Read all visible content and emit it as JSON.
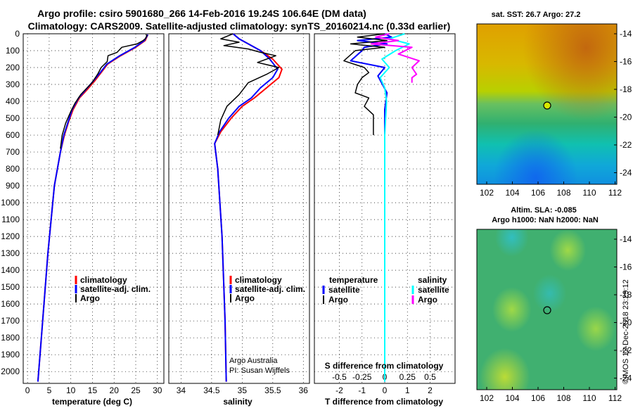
{
  "title": {
    "line1": "Argo profile: csiro 5901680_266 14-Feb-2016 19.24S 106.64E (DM data)",
    "line2": "Climatology: CARS2009. Satellite-adjusted climatology: synTS_20160214.nc (0.33d earlier)"
  },
  "colors": {
    "climatology": "#ff0000",
    "satellite": "#0000ff",
    "argo": "#000000",
    "sat_salinity": "#00ffff",
    "argo_salinity": "#ff00ff"
  },
  "panel_temp": {
    "xlabel": "temperature (deg C)",
    "legend": [
      "climatology",
      "satellite-adj. clim.",
      "Argo"
    ]
  },
  "panel_sal": {
    "xlabel": "salinity",
    "legend": [
      "climatology",
      "satellite-adj. clim.",
      "Argo"
    ],
    "credit1": "Argo Australia",
    "credit2": "PI: Susan Wijffels"
  },
  "panel_diff": {
    "xlabel": "T difference from climatology",
    "top_xlabel": "S difference from climatology",
    "legend_t_title": "temperature",
    "legend_s_title": "salinity",
    "legend_t": [
      "satellite",
      "Argo"
    ],
    "legend_s": [
      "satellite",
      "Argo"
    ]
  },
  "map_sst": {
    "title": "sat. SST: 26.7 Argo: 27.2",
    "lon_ticks": [
      "102",
      "104",
      "106",
      "108",
      "110",
      "112"
    ],
    "lat_ticks": [
      "-14",
      "-16",
      "-18",
      "-20",
      "-22",
      "-24"
    ]
  },
  "map_sla": {
    "title1": "Altim. SLA: -0.085",
    "title2": "Argo h1000: NaN h2000: NaN",
    "lon_ticks": [
      "102",
      "104",
      "106",
      "108",
      "110",
      "112"
    ],
    "lat_ticks": [
      "-14",
      "-16",
      "-18",
      "-20",
      "-22",
      "-24"
    ]
  },
  "footer_vertical": "©IMOS 12-Dec-2018 23:29:12",
  "chart_data": [
    {
      "type": "line",
      "name": "temperature profile",
      "xlabel": "temperature (deg C)",
      "ylabel": "",
      "xlim": [
        -1,
        31.5
      ],
      "ylim": [
        0,
        2070
      ],
      "y_inverted": true,
      "xticks": [
        0,
        5,
        10,
        15,
        20,
        25,
        30
      ],
      "yticks": [
        0,
        100,
        200,
        300,
        400,
        500,
        600,
        700,
        800,
        900,
        1000,
        1100,
        1200,
        1300,
        1400,
        1500,
        1600,
        1700,
        1800,
        1900,
        2000
      ],
      "ytick_labels": [
        "0",
        "100",
        "200",
        "300",
        "400",
        "500",
        "600",
        "700",
        "800",
        "900",
        "1000",
        "1100",
        "1200",
        "1300",
        "1400",
        "1500",
        "1600",
        "1700",
        "1800",
        "1900",
        "2000"
      ],
      "grid": true,
      "legend_position": "bottom-center",
      "series": [
        {
          "name": "climatology",
          "x": [
            27.8,
            27.2,
            25,
            21.5,
            18.5,
            17,
            15.5,
            13.8,
            12,
            10.5,
            9.5,
            8.5,
            7.6,
            6.2,
            4.7,
            3.2,
            2.4
          ],
          "y": [
            5,
            40,
            80,
            130,
            180,
            230,
            280,
            330,
            380,
            450,
            520,
            600,
            700,
            900,
            1300,
            1800,
            2060
          ]
        },
        {
          "name": "satellite-adj. clim.",
          "x": [
            27.8,
            27,
            24.8,
            21.3,
            18.3,
            16.8,
            15.2,
            13.5,
            11.8,
            10.3,
            9.4,
            8.4,
            7.6,
            6.2,
            4.7,
            3.2,
            2.4
          ],
          "y": [
            5,
            40,
            80,
            130,
            180,
            230,
            280,
            330,
            380,
            450,
            520,
            600,
            700,
            900,
            1300,
            1800,
            2060
          ]
        },
        {
          "name": "Argo",
          "x": [
            27.3,
            27.6,
            27.2,
            26.7,
            25.3,
            21.8,
            20.7,
            18.6,
            18.4,
            17,
            16.2,
            14.9,
            12.3,
            11,
            10,
            8.8,
            8,
            7.6
          ],
          "y": [
            5,
            10,
            30,
            40,
            60,
            80,
            110,
            130,
            165,
            200,
            240,
            290,
            360,
            410,
            460,
            530,
            600,
            680
          ]
        }
      ]
    },
    {
      "type": "line",
      "name": "salinity profile",
      "xlabel": "salinity",
      "xlim": [
        33.8,
        36.1
      ],
      "ylim": [
        0,
        2070
      ],
      "y_inverted": true,
      "xticks": [
        34,
        34.5,
        35,
        35.5,
        36
      ],
      "xtick_labels": [
        "34",
        "34.5",
        "35",
        "35.5",
        "36"
      ],
      "grid": true,
      "legend_position": "bottom-right",
      "series": [
        {
          "name": "climatology",
          "x": [
            34.85,
            34.95,
            35.1,
            35.3,
            35.5,
            35.65,
            35.6,
            35.4,
            35.2,
            35.0,
            34.82,
            34.65,
            34.55,
            34.6,
            34.67,
            34.72,
            34.74
          ],
          "y": [
            0,
            30,
            60,
            100,
            150,
            210,
            260,
            320,
            380,
            430,
            500,
            580,
            650,
            800,
            1200,
            1700,
            2060
          ]
        },
        {
          "name": "satellite-adj. clim.",
          "x": [
            34.85,
            34.95,
            35.1,
            35.3,
            35.45,
            35.58,
            35.5,
            35.3,
            35.15,
            34.95,
            34.78,
            34.63,
            34.55,
            34.6,
            34.67,
            34.72,
            34.74
          ],
          "y": [
            0,
            30,
            60,
            100,
            150,
            210,
            260,
            320,
            380,
            430,
            500,
            580,
            650,
            800,
            1200,
            1700,
            2060
          ]
        },
        {
          "name": "Argo",
          "x": [
            34.85,
            34.65,
            34.95,
            34.7,
            35.1,
            35.3,
            35.55,
            35.25,
            35.6,
            35.4,
            35.1,
            34.95,
            34.75,
            34.65,
            34.6
          ],
          "y": [
            0,
            30,
            50,
            70,
            90,
            110,
            130,
            170,
            200,
            240,
            290,
            360,
            430,
            510,
            600
          ]
        }
      ]
    },
    {
      "type": "line",
      "name": "difference from climatology",
      "xlabel": "T difference from climatology",
      "xlim": [
        -3.1,
        3.1
      ],
      "ylim": [
        0,
        2070
      ],
      "y_inverted": true,
      "xticks": [
        -2,
        -1,
        0,
        1,
        2
      ],
      "top_xlabel": "S difference from climatology",
      "top_xticks": [
        -0.5,
        -0.25,
        0,
        0.25,
        0.5
      ],
      "top_xtick_labels": [
        "-0.5",
        "-0.25",
        "0",
        "0.25",
        "0.5"
      ],
      "grid": true,
      "series": [
        {
          "name": "temperature satellite",
          "x": [
            0,
            0.3,
            -1.2,
            0.1,
            -0.9,
            -1.0,
            -1.5,
            0,
            -0.3,
            0.1,
            0,
            0,
            0,
            0
          ],
          "y": [
            0,
            20,
            40,
            60,
            80,
            100,
            160,
            200,
            250,
            350,
            450,
            600,
            1000,
            2060
          ]
        },
        {
          "name": "temperature Argo",
          "x": [
            0,
            -1.2,
            0.1,
            -1.5,
            0,
            -1.3,
            -1.8,
            -0.9,
            -0.7,
            -1.0,
            -1.2,
            -1.3,
            -0.7,
            -0.9,
            -0.5,
            -0.5
          ],
          "y": [
            0,
            20,
            40,
            60,
            80,
            100,
            160,
            200,
            230,
            260,
            300,
            350,
            380,
            430,
            480,
            600
          ]
        },
        {
          "name": "salinity satellite",
          "x": [
            0.22,
            0.05,
            0.27,
            0.12,
            -0.03,
            0.05,
            -0.05,
            0,
            0.02,
            0,
            0
          ],
          "y": [
            0,
            30,
            60,
            100,
            150,
            200,
            260,
            320,
            400,
            600,
            2060
          ]
        },
        {
          "name": "salinity Argo",
          "x": [
            0.05,
            -0.1,
            0.15,
            -0.15,
            0.3,
            0.15,
            0.38,
            0.3,
            0.35,
            0.3,
            0.3
          ],
          "y": [
            0,
            20,
            40,
            60,
            80,
            120,
            160,
            200,
            240,
            260,
            290
          ]
        }
      ]
    }
  ]
}
